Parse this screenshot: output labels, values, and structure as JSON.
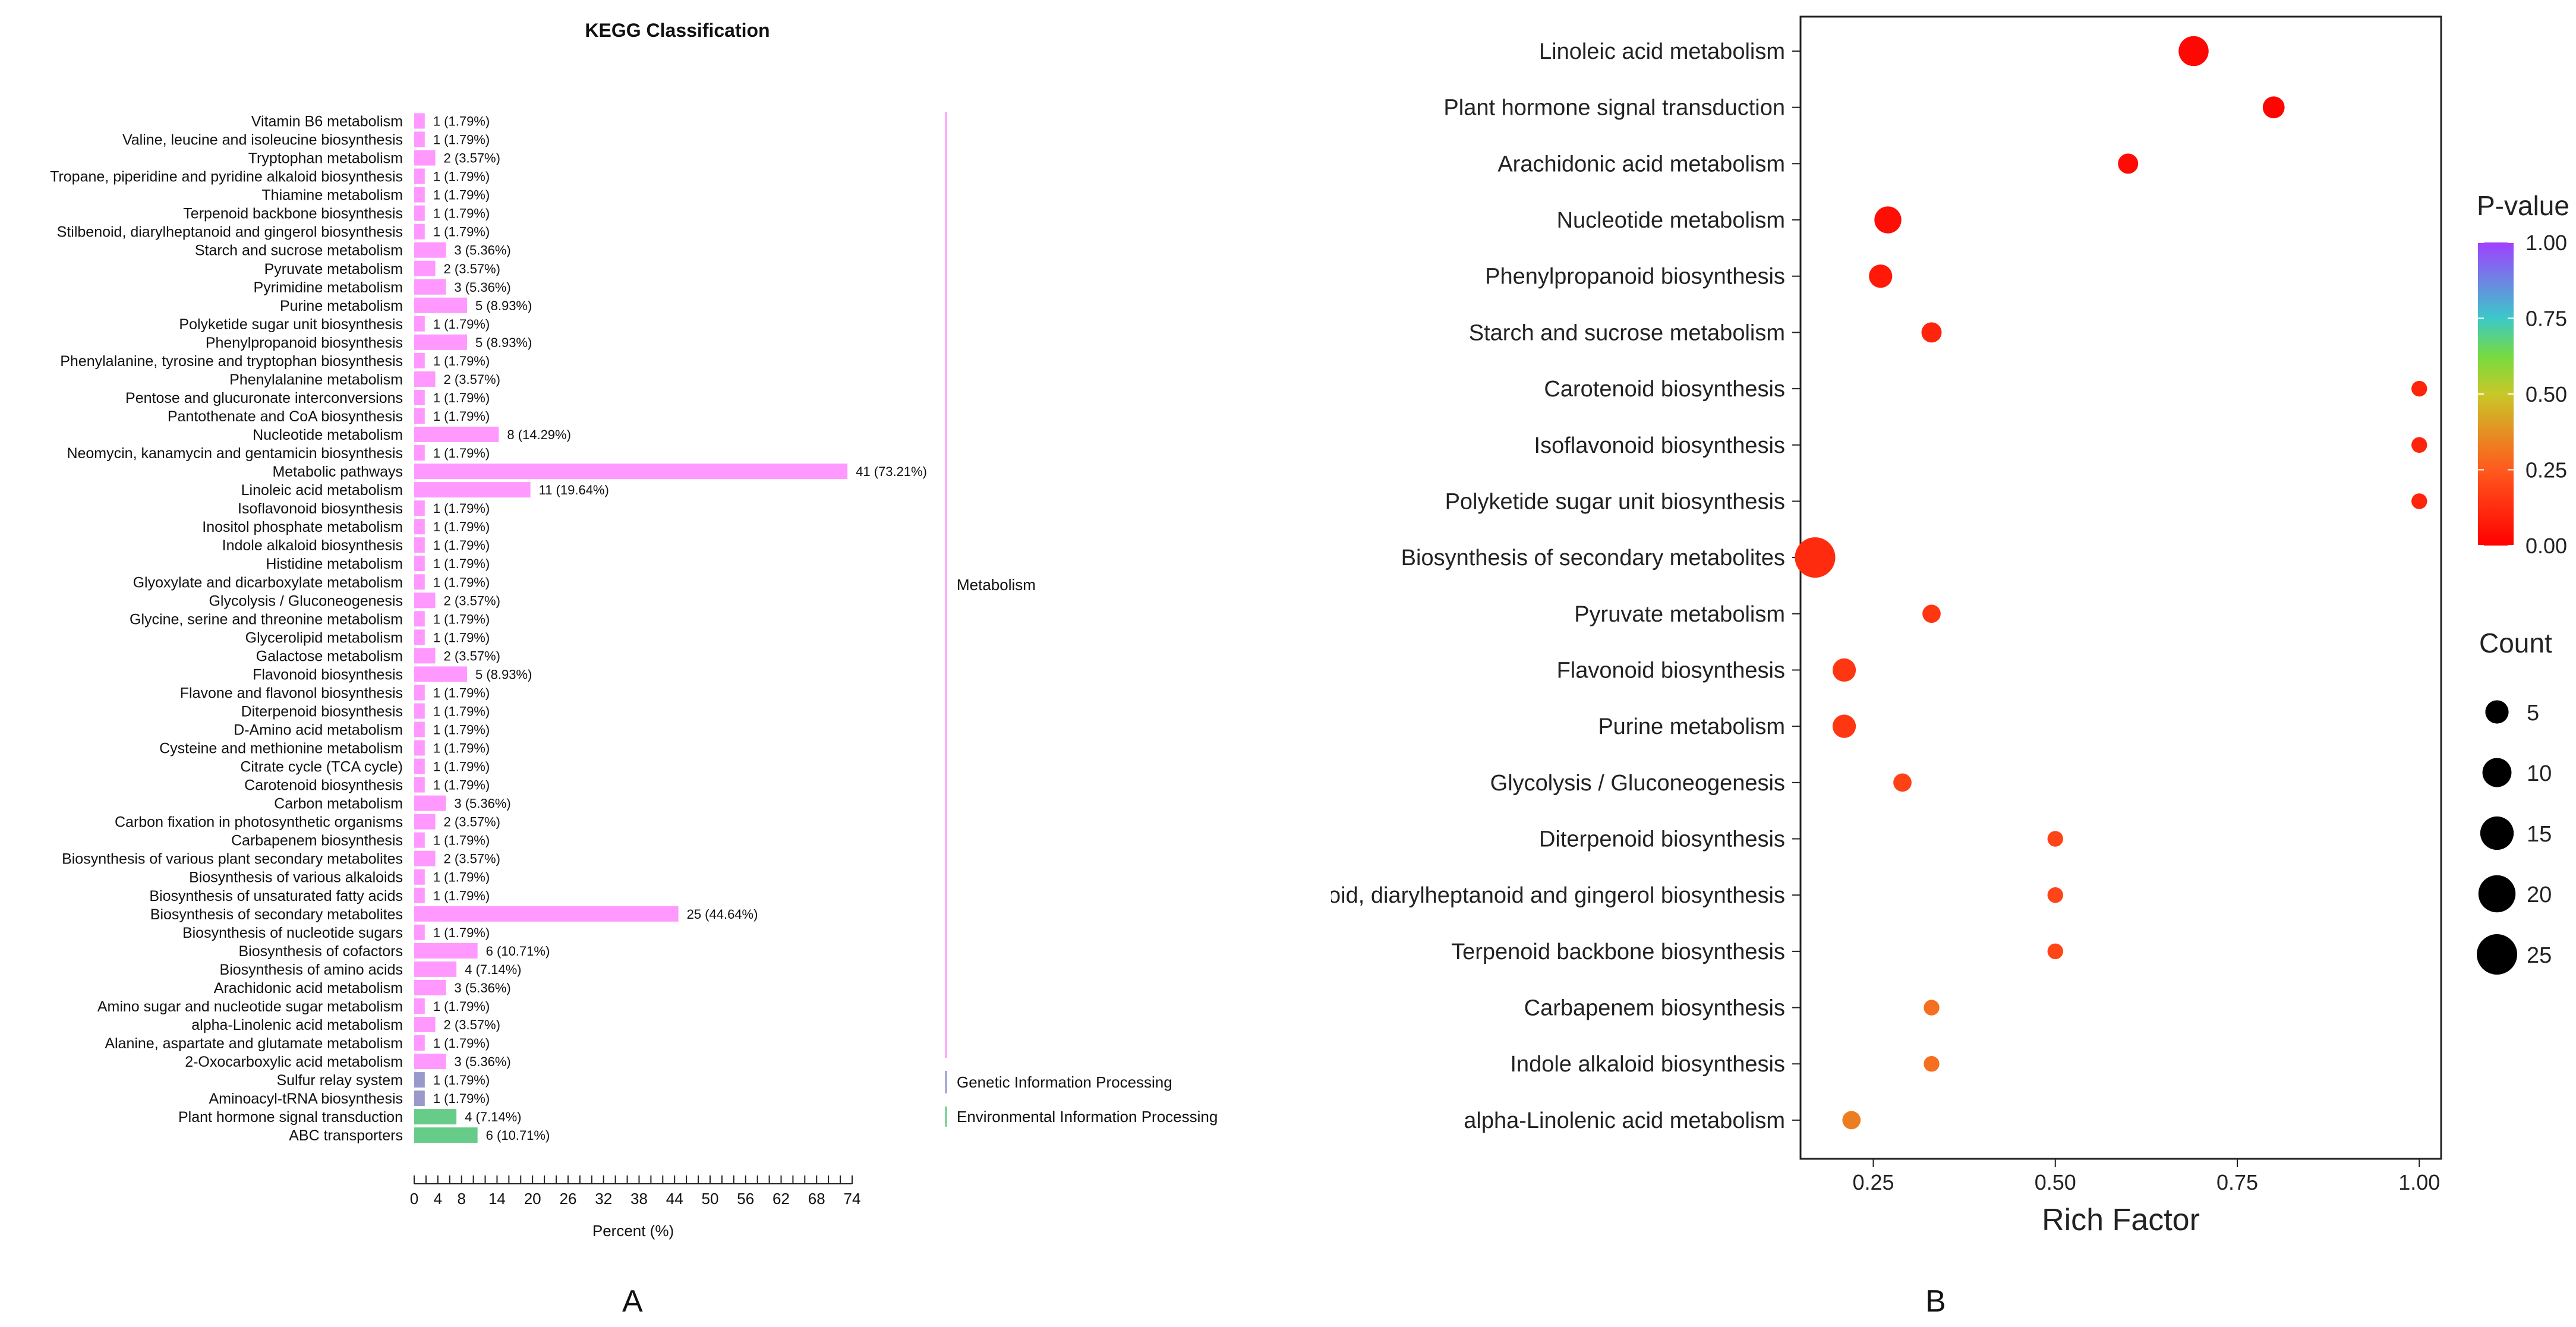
{
  "panel_labels": {
    "a": "A",
    "b": "B"
  },
  "colors": {
    "metabolism": "#ff99ff",
    "genetic": "#9999cc",
    "environmental": "#66cc88",
    "bubble_low": "#ff0000",
    "bubble_high": "#a040ff"
  },
  "chart_data": [
    {
      "type": "bar",
      "orientation": "horizontal",
      "title": "KEGG Classification",
      "xlabel": "Percent (%)",
      "ylabel": "",
      "xlim": [
        0,
        74
      ],
      "xticks": [
        "0",
        "2",
        "4",
        "6",
        "8",
        "10",
        "12",
        "14",
        "16",
        "18",
        "20",
        "22",
        "24",
        "26",
        "28",
        "30",
        "32",
        "34",
        "36",
        "38",
        "40",
        "42",
        "44",
        "46",
        "48",
        "50",
        "52",
        "54",
        "56",
        "58",
        "60",
        "62",
        "64",
        "66",
        "68",
        "70",
        "72",
        "74"
      ],
      "xtick_labels_shown": [
        "0",
        "4",
        "8",
        "14",
        "20",
        "26",
        "32",
        "38",
        "44",
        "50",
        "56",
        "62",
        "68",
        "74"
      ],
      "categories": [
        {
          "label": "Vitamin B6 metabolism",
          "count": 1,
          "percent": 1.79,
          "value_label": "1 (1.79%)",
          "group": "Metabolism"
        },
        {
          "label": "Valine, leucine and isoleucine biosynthesis",
          "count": 1,
          "percent": 1.79,
          "value_label": "1 (1.79%)",
          "group": "Metabolism"
        },
        {
          "label": "Tryptophan metabolism",
          "count": 2,
          "percent": 3.57,
          "value_label": "2 (3.57%)",
          "group": "Metabolism"
        },
        {
          "label": "Tropane, piperidine and pyridine alkaloid biosynthesis",
          "count": 1,
          "percent": 1.79,
          "value_label": "1 (1.79%)",
          "group": "Metabolism"
        },
        {
          "label": "Thiamine metabolism",
          "count": 1,
          "percent": 1.79,
          "value_label": "1 (1.79%)",
          "group": "Metabolism"
        },
        {
          "label": "Terpenoid backbone biosynthesis",
          "count": 1,
          "percent": 1.79,
          "value_label": "1 (1.79%)",
          "group": "Metabolism"
        },
        {
          "label": "Stilbenoid, diarylheptanoid and gingerol biosynthesis",
          "count": 1,
          "percent": 1.79,
          "value_label": "1 (1.79%)",
          "group": "Metabolism"
        },
        {
          "label": "Starch and sucrose metabolism",
          "count": 3,
          "percent": 5.36,
          "value_label": "3 (5.36%)",
          "group": "Metabolism"
        },
        {
          "label": "Pyruvate metabolism",
          "count": 2,
          "percent": 3.57,
          "value_label": "2 (3.57%)",
          "group": "Metabolism"
        },
        {
          "label": "Pyrimidine metabolism",
          "count": 3,
          "percent": 5.36,
          "value_label": "3 (5.36%)",
          "group": "Metabolism"
        },
        {
          "label": "Purine metabolism",
          "count": 5,
          "percent": 8.93,
          "value_label": "5 (8.93%)",
          "group": "Metabolism"
        },
        {
          "label": "Polyketide sugar unit biosynthesis",
          "count": 1,
          "percent": 1.79,
          "value_label": "1 (1.79%)",
          "group": "Metabolism"
        },
        {
          "label": "Phenylpropanoid biosynthesis",
          "count": 5,
          "percent": 8.93,
          "value_label": "5 (8.93%)",
          "group": "Metabolism"
        },
        {
          "label": "Phenylalanine, tyrosine and tryptophan biosynthesis",
          "count": 1,
          "percent": 1.79,
          "value_label": "1 (1.79%)",
          "group": "Metabolism"
        },
        {
          "label": "Phenylalanine metabolism",
          "count": 2,
          "percent": 3.57,
          "value_label": "2 (3.57%)",
          "group": "Metabolism"
        },
        {
          "label": "Pentose and glucuronate interconversions",
          "count": 1,
          "percent": 1.79,
          "value_label": "1 (1.79%)",
          "group": "Metabolism"
        },
        {
          "label": "Pantothenate and CoA biosynthesis",
          "count": 1,
          "percent": 1.79,
          "value_label": "1 (1.79%)",
          "group": "Metabolism"
        },
        {
          "label": "Nucleotide metabolism",
          "count": 8,
          "percent": 14.29,
          "value_label": "8 (14.29%)",
          "group": "Metabolism"
        },
        {
          "label": "Neomycin, kanamycin and gentamicin biosynthesis",
          "count": 1,
          "percent": 1.79,
          "value_label": "1 (1.79%)",
          "group": "Metabolism"
        },
        {
          "label": "Metabolic pathways",
          "count": 41,
          "percent": 73.21,
          "value_label": "41 (73.21%)",
          "group": "Metabolism"
        },
        {
          "label": "Linoleic acid metabolism",
          "count": 11,
          "percent": 19.64,
          "value_label": "11 (19.64%)",
          "group": "Metabolism"
        },
        {
          "label": "Isoflavonoid biosynthesis",
          "count": 1,
          "percent": 1.79,
          "value_label": "1 (1.79%)",
          "group": "Metabolism"
        },
        {
          "label": "Inositol phosphate metabolism",
          "count": 1,
          "percent": 1.79,
          "value_label": "1 (1.79%)",
          "group": "Metabolism"
        },
        {
          "label": "Indole alkaloid biosynthesis",
          "count": 1,
          "percent": 1.79,
          "value_label": "1 (1.79%)",
          "group": "Metabolism"
        },
        {
          "label": "Histidine metabolism",
          "count": 1,
          "percent": 1.79,
          "value_label": "1 (1.79%)",
          "group": "Metabolism"
        },
        {
          "label": "Glyoxylate and dicarboxylate metabolism",
          "count": 1,
          "percent": 1.79,
          "value_label": "1 (1.79%)",
          "group": "Metabolism"
        },
        {
          "label": "Glycolysis / Gluconeogenesis",
          "count": 2,
          "percent": 3.57,
          "value_label": "2 (3.57%)",
          "group": "Metabolism"
        },
        {
          "label": "Glycine, serine and threonine metabolism",
          "count": 1,
          "percent": 1.79,
          "value_label": "1 (1.79%)",
          "group": "Metabolism"
        },
        {
          "label": "Glycerolipid metabolism",
          "count": 1,
          "percent": 1.79,
          "value_label": "1 (1.79%)",
          "group": "Metabolism"
        },
        {
          "label": "Galactose metabolism",
          "count": 2,
          "percent": 3.57,
          "value_label": "2 (3.57%)",
          "group": "Metabolism"
        },
        {
          "label": "Flavonoid biosynthesis",
          "count": 5,
          "percent": 8.93,
          "value_label": "5 (8.93%)",
          "group": "Metabolism"
        },
        {
          "label": "Flavone and flavonol biosynthesis",
          "count": 1,
          "percent": 1.79,
          "value_label": "1 (1.79%)",
          "group": "Metabolism"
        },
        {
          "label": "Diterpenoid biosynthesis",
          "count": 1,
          "percent": 1.79,
          "value_label": "1 (1.79%)",
          "group": "Metabolism"
        },
        {
          "label": "D-Amino acid metabolism",
          "count": 1,
          "percent": 1.79,
          "value_label": "1 (1.79%)",
          "group": "Metabolism"
        },
        {
          "label": "Cysteine and methionine metabolism",
          "count": 1,
          "percent": 1.79,
          "value_label": "1 (1.79%)",
          "group": "Metabolism"
        },
        {
          "label": "Citrate cycle (TCA cycle)",
          "count": 1,
          "percent": 1.79,
          "value_label": "1 (1.79%)",
          "group": "Metabolism"
        },
        {
          "label": "Carotenoid biosynthesis",
          "count": 1,
          "percent": 1.79,
          "value_label": "1 (1.79%)",
          "group": "Metabolism"
        },
        {
          "label": "Carbon metabolism",
          "count": 3,
          "percent": 5.36,
          "value_label": "3 (5.36%)",
          "group": "Metabolism"
        },
        {
          "label": "Carbon fixation in photosynthetic organisms",
          "count": 2,
          "percent": 3.57,
          "value_label": "2 (3.57%)",
          "group": "Metabolism"
        },
        {
          "label": "Carbapenem biosynthesis",
          "count": 1,
          "percent": 1.79,
          "value_label": "1 (1.79%)",
          "group": "Metabolism"
        },
        {
          "label": "Biosynthesis of various plant secondary metabolites",
          "count": 2,
          "percent": 3.57,
          "value_label": "2 (3.57%)",
          "group": "Metabolism"
        },
        {
          "label": "Biosynthesis of various alkaloids",
          "count": 1,
          "percent": 1.79,
          "value_label": "1 (1.79%)",
          "group": "Metabolism"
        },
        {
          "label": "Biosynthesis of unsaturated fatty acids",
          "count": 1,
          "percent": 1.79,
          "value_label": "1 (1.79%)",
          "group": "Metabolism"
        },
        {
          "label": "Biosynthesis of secondary metabolites",
          "count": 25,
          "percent": 44.64,
          "value_label": "25 (44.64%)",
          "group": "Metabolism"
        },
        {
          "label": "Biosynthesis of nucleotide sugars",
          "count": 1,
          "percent": 1.79,
          "value_label": "1 (1.79%)",
          "group": "Metabolism"
        },
        {
          "label": "Biosynthesis of cofactors",
          "count": 6,
          "percent": 10.71,
          "value_label": "6 (10.71%)",
          "group": "Metabolism"
        },
        {
          "label": "Biosynthesis of amino acids",
          "count": 4,
          "percent": 7.14,
          "value_label": "4 (7.14%)",
          "group": "Metabolism"
        },
        {
          "label": "Arachidonic acid metabolism",
          "count": 3,
          "percent": 5.36,
          "value_label": "3 (5.36%)",
          "group": "Metabolism"
        },
        {
          "label": "Amino sugar and nucleotide sugar metabolism",
          "count": 1,
          "percent": 1.79,
          "value_label": "1 (1.79%)",
          "group": "Metabolism"
        },
        {
          "label": "alpha-Linolenic acid metabolism",
          "count": 2,
          "percent": 3.57,
          "value_label": "2 (3.57%)",
          "group": "Metabolism"
        },
        {
          "label": "Alanine, aspartate and glutamate metabolism",
          "count": 1,
          "percent": 1.79,
          "value_label": "1 (1.79%)",
          "group": "Metabolism"
        },
        {
          "label": "2-Oxocarboxylic acid metabolism",
          "count": 3,
          "percent": 5.36,
          "value_label": "3 (5.36%)",
          "group": "Metabolism"
        },
        {
          "label": "Sulfur relay system",
          "count": 1,
          "percent": 1.79,
          "value_label": "1 (1.79%)",
          "group": "Genetic Information Processing"
        },
        {
          "label": "Aminoacyl-tRNA biosynthesis",
          "count": 1,
          "percent": 1.79,
          "value_label": "1 (1.79%)",
          "group": "Genetic Information Processing"
        },
        {
          "label": "Plant hormone signal transduction",
          "count": 4,
          "percent": 7.14,
          "value_label": "4 (7.14%)",
          "group": "Environmental Information Processing"
        },
        {
          "label": "ABC transporters",
          "count": 6,
          "percent": 10.71,
          "value_label": "6 (10.71%)",
          "group": "Environmental Information Processing"
        }
      ],
      "groups": [
        "Metabolism",
        "Genetic Information Processing",
        "Environmental Information Processing"
      ]
    },
    {
      "type": "scatter",
      "subtype": "bubble",
      "title": "",
      "xlabel": "Rich Factor",
      "ylabel": "",
      "xlim": [
        0.15,
        1.03
      ],
      "xticks": [
        "0.25",
        "0.50",
        "0.75",
        "1.00"
      ],
      "points": [
        {
          "label": "Linoleic acid metabolism",
          "rich_factor": 0.69,
          "pvalue": 0.02,
          "count": 11
        },
        {
          "label": "Plant hormone signal transduction",
          "rich_factor": 0.8,
          "pvalue": 0.01,
          "count": 4
        },
        {
          "label": "Arachidonic acid metabolism",
          "rich_factor": 0.6,
          "pvalue": 0.03,
          "count": 3
        },
        {
          "label": "Nucleotide metabolism",
          "rich_factor": 0.27,
          "pvalue": 0.04,
          "count": 8
        },
        {
          "label": "Phenylpropanoid biosynthesis",
          "rich_factor": 0.26,
          "pvalue": 0.07,
          "count": 5
        },
        {
          "label": "Starch and sucrose metabolism",
          "rich_factor": 0.33,
          "pvalue": 0.1,
          "count": 3
        },
        {
          "label": "Carotenoid biosynthesis",
          "rich_factor": 1.0,
          "pvalue": 0.1,
          "count": 1
        },
        {
          "label": "Isoflavonoid biosynthesis",
          "rich_factor": 1.0,
          "pvalue": 0.1,
          "count": 1
        },
        {
          "label": "Polyketide sugar unit biosynthesis",
          "rich_factor": 1.0,
          "pvalue": 0.1,
          "count": 1
        },
        {
          "label": "Biosynthesis of secondary metabolites",
          "rich_factor": 0.17,
          "pvalue": 0.12,
          "count": 25
        },
        {
          "label": "Pyruvate metabolism",
          "rich_factor": 0.33,
          "pvalue": 0.15,
          "count": 2
        },
        {
          "label": "Flavonoid biosynthesis",
          "rich_factor": 0.21,
          "pvalue": 0.15,
          "count": 5
        },
        {
          "label": "Purine metabolism",
          "rich_factor": 0.21,
          "pvalue": 0.15,
          "count": 5
        },
        {
          "label": "Glycolysis / Gluconeogenesis",
          "rich_factor": 0.29,
          "pvalue": 0.18,
          "count": 2
        },
        {
          "label": "Diterpenoid biosynthesis",
          "rich_factor": 0.5,
          "pvalue": 0.19,
          "count": 1
        },
        {
          "label": "Stilbenoid, diarylheptanoid and gingerol biosynthesis",
          "rich_factor": 0.5,
          "pvalue": 0.19,
          "count": 1
        },
        {
          "label": "Terpenoid backbone biosynthesis",
          "rich_factor": 0.5,
          "pvalue": 0.19,
          "count": 1
        },
        {
          "label": "Carbapenem biosynthesis",
          "rich_factor": 0.33,
          "pvalue": 0.3,
          "count": 1
        },
        {
          "label": "Indole alkaloid biosynthesis",
          "rich_factor": 0.33,
          "pvalue": 0.3,
          "count": 1
        },
        {
          "label": "alpha-Linolenic acid metabolism",
          "rich_factor": 0.22,
          "pvalue": 0.33,
          "count": 2
        }
      ],
      "legend_color": {
        "title": "P-value",
        "ticks": [
          "1.00",
          "0.75",
          "0.50",
          "0.25",
          "0.00"
        ],
        "range": [
          0,
          1
        ]
      },
      "legend_size": {
        "title": "Count",
        "values": [
          5,
          10,
          15,
          20,
          25
        ]
      }
    }
  ]
}
